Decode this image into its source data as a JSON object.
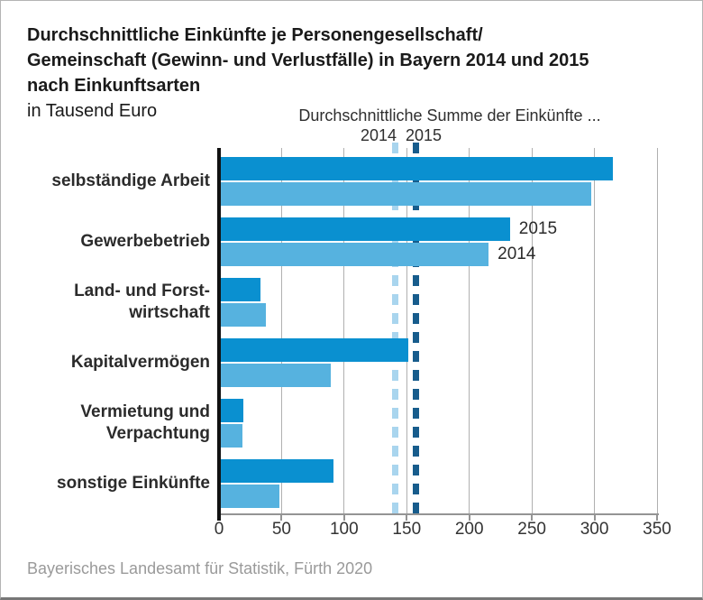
{
  "header": {
    "title_lines": [
      "Durchschnittliche Einkünfte je Personengesellschaft/",
      "Gemeinschaft (Gewinn- und Verlustfälle) in Bayern 2014 und 2015",
      "nach Einkunftsarten"
    ],
    "subtitle": "in Tausend Euro"
  },
  "annotation": {
    "title": "Durchschnittliche Summe der Einkünfte ...",
    "year_left": "2014",
    "year_right": "2015"
  },
  "footer": {
    "source": "Bayerisches Landesamt für Statistik, Fürth 2020"
  },
  "colors": {
    "series_2015": "#0a90d0",
    "series_2014": "#56b2df",
    "ref_2015": "#175c8c",
    "ref_2014": "#a9d5ee",
    "gridline": "#b0b0b0",
    "axis": "#949494"
  },
  "chart_data": {
    "type": "bar",
    "orientation": "horizontal",
    "title": "Durchschnittliche Einkünfte je Personengesellschaft/Gemeinschaft (Gewinn- und Verlustfälle) in Bayern 2014 und 2015 nach Einkunftsarten",
    "unit": "in Tausend Euro",
    "categories": [
      "selbständige Arbeit",
      "Gewerbebetrieb",
      "Land- und Forstwirtschaft",
      "Kapitalvermögen",
      "Vermietung und Verpachtung",
      "sonstige Einkünfte"
    ],
    "category_label_lines": [
      [
        "selbständige Arbeit"
      ],
      [
        "Gewerbebetrieb"
      ],
      [
        "Land- und Forst-",
        "wirtschaft"
      ],
      [
        "Kapitalvermögen"
      ],
      [
        "Vermietung und",
        "Verpachtung"
      ],
      [
        "sonstige Einkünfte"
      ]
    ],
    "series": [
      {
        "name": "2015",
        "color": "#0a90d0",
        "values": [
          313,
          231,
          32,
          150,
          18,
          90
        ]
      },
      {
        "name": "2014",
        "color": "#56b2df",
        "values": [
          296,
          214,
          36,
          88,
          17,
          47
        ]
      }
    ],
    "reference_lines": [
      {
        "name": "2014",
        "value": 141,
        "color": "#a9d5ee",
        "style": "dashed"
      },
      {
        "name": "2015",
        "value": 157,
        "color": "#175c8c",
        "style": "dashed"
      }
    ],
    "xlim": [
      0,
      350
    ],
    "xticks": [
      0,
      50,
      100,
      150,
      200,
      250,
      300,
      350
    ],
    "grid": true,
    "legend_position": "inline-at-category",
    "series_labels_at_category": "Gewerbebetrieb",
    "source": "Bayerisches Landesamt für Statistik, Fürth 2020"
  }
}
